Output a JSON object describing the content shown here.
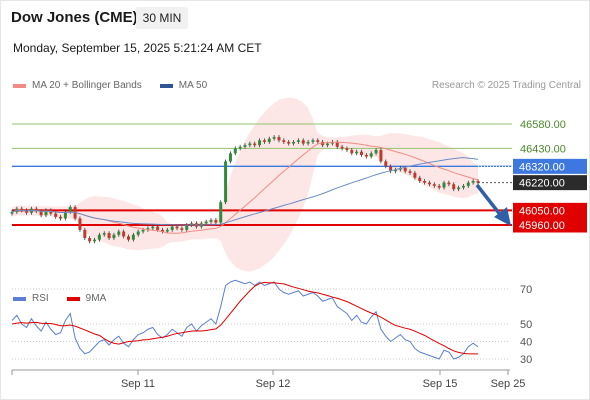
{
  "header": {
    "title": "Dow Jones (CME)",
    "interval": "30 MIN",
    "datetime": "Monday, September 15, 2025 5:21:24 AM CET"
  },
  "legend": {
    "items": [
      {
        "label": "MA 20 + Bollinger Bands",
        "color": "#f28b82"
      },
      {
        "label": "MA 50",
        "color": "#2f5597"
      }
    ],
    "credit": "Research © 2025 Trading Central"
  },
  "rsi_legend": {
    "items": [
      {
        "label": "RSI",
        "color": "#5b7fd6"
      },
      {
        "label": "9MA",
        "color": "#e00000"
      }
    ]
  },
  "colors": {
    "resistance": "#92c36d",
    "pivot": "#3d78e0",
    "support": "#e00000",
    "price_tag": "#2b2b2b",
    "bull_candle": "#2e8b3d",
    "bear_candle": "#c0392b",
    "bollinger_fill": "#fde3e3",
    "ma20": "#f28b82",
    "ma50": "#6b8cc7",
    "arrow": "#2f5fa6"
  },
  "chart_data": [
    {
      "type": "candlestick",
      "title": "",
      "x_ticks": [
        "Sep 11",
        "Sep 12",
        "Sep 15",
        "Sep 25"
      ],
      "ylim": [
        45700,
        46800
      ],
      "price_levels": [
        {
          "label": "46580.00",
          "value": 46580,
          "kind": "resistance"
        },
        {
          "label": "46430.00",
          "value": 46430,
          "kind": "resistance"
        },
        {
          "label": "46320.00",
          "value": 46320,
          "kind": "pivot"
        },
        {
          "label": "46220.00",
          "value": 46220,
          "kind": "last_price"
        },
        {
          "label": "46050.00",
          "value": 46050,
          "kind": "support"
        },
        {
          "label": "45960.00",
          "value": 45960,
          "kind": "support"
        }
      ],
      "close_series": [
        46040,
        46060,
        46050,
        46035,
        46060,
        46045,
        46020,
        46050,
        46030,
        46010,
        46000,
        46040,
        46070,
        46000,
        45930,
        45880,
        45860,
        45870,
        45900,
        45910,
        45880,
        45900,
        45920,
        45890,
        45870,
        45900,
        45920,
        45930,
        45940,
        45950,
        45930,
        45920,
        45930,
        45950,
        45940,
        45930,
        45960,
        45970,
        45950,
        45970,
        45980,
        45990,
        45975,
        46100,
        46350,
        46400,
        46430,
        46440,
        46450,
        46460,
        46450,
        46480,
        46470,
        46490,
        46500,
        46480,
        46470,
        46460,
        46470,
        46480,
        46460,
        46470,
        46480,
        46470,
        46450,
        46460,
        46470,
        46440,
        46430,
        46420,
        46400,
        46410,
        46390,
        46380,
        46400,
        46420,
        46350,
        46320,
        46290,
        46300,
        46310,
        46290,
        46280,
        46250,
        46230,
        46220,
        46210,
        46200,
        46190,
        46220,
        46210,
        46180,
        46190,
        46200,
        46220,
        46230,
        46220
      ],
      "series": [
        {
          "name": "MA 20 + Bollinger Bands"
        },
        {
          "name": "MA 50"
        }
      ]
    },
    {
      "type": "line",
      "title": "",
      "ylim": [
        20,
        80
      ],
      "y_ticks": [
        70,
        50,
        40,
        30
      ],
      "series": [
        {
          "name": "RSI",
          "values": [
            52,
            55,
            50,
            48,
            53,
            49,
            46,
            51,
            47,
            44,
            45,
            52,
            56,
            42,
            36,
            33,
            34,
            37,
            40,
            41,
            38,
            41,
            43,
            39,
            37,
            41,
            44,
            45,
            47,
            48,
            44,
            42,
            44,
            47,
            45,
            43,
            48,
            50,
            46,
            49,
            51,
            53,
            50,
            60,
            72,
            74,
            75,
            74,
            73,
            74,
            72,
            74,
            72,
            73,
            74,
            70,
            68,
            67,
            68,
            69,
            66,
            67,
            68,
            66,
            63,
            64,
            65,
            60,
            58,
            56,
            52,
            55,
            51,
            50,
            54,
            57,
            47,
            43,
            40,
            42,
            44,
            41,
            40,
            36,
            34,
            33,
            32,
            31,
            30,
            35,
            34,
            30,
            31,
            33,
            37,
            39,
            37
          ]
        },
        {
          "name": "9MA",
          "values": [
            50,
            50.5,
            50.8,
            50.5,
            50.8,
            50.9,
            50.4,
            50.3,
            50.3,
            49.7,
            49.0,
            49.0,
            49.4,
            48.8,
            47.7,
            46.6,
            45.5,
            44.3,
            43.5,
            41.6,
            40.0,
            39.0,
            38.5,
            39.3,
            40.0,
            40.2,
            40.4,
            40.9,
            41.1,
            41.6,
            42.0,
            42.4,
            43.0,
            43.9,
            44.6,
            45.0,
            45.5,
            45.9,
            46.1,
            46.0,
            46.3,
            46.8,
            47.2,
            49.4,
            52.7,
            56.1,
            59.5,
            63.0,
            66.0,
            69.0,
            71.6,
            73.1,
            73.8,
            73.5,
            73.6,
            73.2,
            72.9,
            72.0,
            71.1,
            70.4,
            69.6,
            68.8,
            68.2,
            67.8,
            67.0,
            66.3,
            65.4,
            64.7,
            63.8,
            62.8,
            61.5,
            60.2,
            58.8,
            57.5,
            56.3,
            55.3,
            53.9,
            52.3,
            50.6,
            49.2,
            48.4,
            47.6,
            47.0,
            45.9,
            44.7,
            43.5,
            41.9,
            40.4,
            38.9,
            37.6,
            36.0,
            34.6,
            33.8,
            33.2,
            32.9,
            32.9,
            32.9
          ]
        }
      ]
    }
  ]
}
